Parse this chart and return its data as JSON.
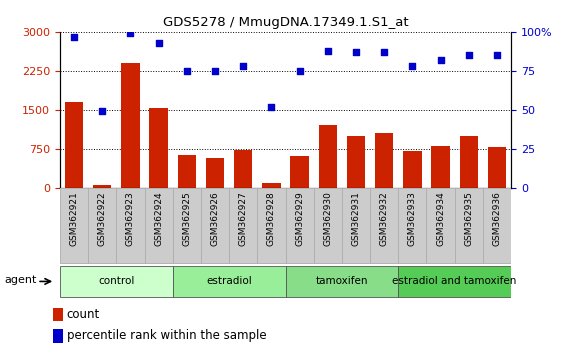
{
  "title": "GDS5278 / MmugDNA.17349.1.S1_at",
  "samples": [
    "GSM362921",
    "GSM362922",
    "GSM362923",
    "GSM362924",
    "GSM362925",
    "GSM362926",
    "GSM362927",
    "GSM362928",
    "GSM362929",
    "GSM362930",
    "GSM362931",
    "GSM362932",
    "GSM362933",
    "GSM362934",
    "GSM362935",
    "GSM362936"
  ],
  "counts": [
    1650,
    50,
    2400,
    1530,
    620,
    580,
    720,
    80,
    600,
    1200,
    1000,
    1050,
    700,
    800,
    1000,
    780
  ],
  "percentiles": [
    97,
    49,
    99,
    93,
    75,
    75,
    78,
    52,
    75,
    88,
    87,
    87,
    78,
    82,
    85,
    85
  ],
  "bar_color": "#cc2200",
  "dot_color": "#0000cc",
  "ylim_left": [
    0,
    3000
  ],
  "ylim_right": [
    0,
    100
  ],
  "yticks_left": [
    0,
    750,
    1500,
    2250,
    3000
  ],
  "yticks_right": [
    0,
    25,
    50,
    75,
    100
  ],
  "groups": [
    {
      "label": "control",
      "start": 0,
      "end": 4,
      "color": "#ccffcc"
    },
    {
      "label": "estradiol",
      "start": 4,
      "end": 8,
      "color": "#99ee99"
    },
    {
      "label": "tamoxifen",
      "start": 8,
      "end": 12,
      "color": "#88dd88"
    },
    {
      "label": "estradiol and tamoxifen",
      "start": 12,
      "end": 16,
      "color": "#55cc55"
    }
  ],
  "agent_label": "agent",
  "legend_count": "count",
  "legend_percentile": "percentile rank within the sample",
  "background_color": "#ffffff",
  "tick_label_bg": "#cccccc",
  "tick_label_edge": "#999999",
  "label_area_bg": "#cccccc"
}
